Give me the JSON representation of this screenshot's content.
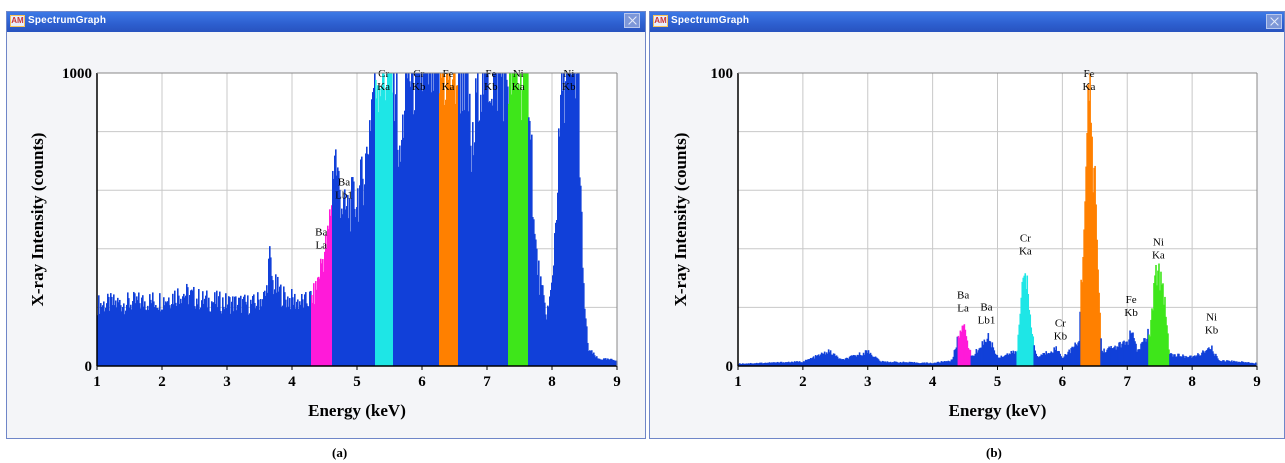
{
  "windows": [
    {
      "title": "SpectrumGraph",
      "logo": "AM",
      "close_icon": "close-icon"
    },
    {
      "title": "SpectrumGraph",
      "logo": "AM",
      "close_icon": "close-icon"
    }
  ],
  "captions": [
    "(a)",
    "(b)"
  ],
  "colors": {
    "spectrum": "#1140d9",
    "Ba La": "#ff1ad9",
    "Cr Ka": "#1ee6e6",
    "Fe Ka": "#ff8000",
    "Ni Ka": "#3ee61a",
    "grid": "#c8c8c8",
    "axis_fg": "#000000"
  },
  "chart_data": [
    {
      "type": "area",
      "title": "",
      "xlabel": "Energy (keV)",
      "ylabel": "X-ray Intensity (counts)",
      "xlim": [
        1,
        9
      ],
      "ylim": [
        0,
        1000
      ],
      "xticks": [
        "1",
        "2",
        "3",
        "4",
        "5",
        "6",
        "7",
        "8",
        "9"
      ],
      "yticks": [
        "0",
        "1000"
      ],
      "grid": true,
      "series": [
        {
          "points": [
            [
              1.0,
              210
            ],
            [
              1.5,
              215
            ],
            [
              2.0,
              225
            ],
            [
              2.3,
              250
            ],
            [
              2.6,
              225
            ],
            [
              3.0,
              215
            ],
            [
              3.4,
              210
            ],
            [
              3.6,
              240
            ],
            [
              3.65,
              370
            ],
            [
              3.7,
              280
            ],
            [
              3.9,
              230
            ],
            [
              4.2,
              215
            ],
            [
              4.35,
              245
            ],
            [
              4.45,
              350
            ],
            [
              4.55,
              430
            ],
            [
              4.6,
              550
            ],
            [
              4.65,
              750
            ],
            [
              4.7,
              640
            ],
            [
              4.8,
              520
            ],
            [
              4.95,
              560
            ],
            [
              5.05,
              600
            ],
            [
              5.15,
              720
            ],
            [
              5.22,
              900
            ],
            [
              5.27,
              1000
            ],
            [
              5.6,
              1000
            ],
            [
              5.65,
              650
            ],
            [
              5.7,
              800
            ],
            [
              5.75,
              1000
            ],
            [
              6.7,
              1000
            ],
            [
              6.75,
              700
            ],
            [
              6.8,
              750
            ],
            [
              6.85,
              1000
            ],
            [
              7.65,
              1000
            ],
            [
              7.72,
              450
            ],
            [
              7.8,
              300
            ],
            [
              7.9,
              180
            ],
            [
              7.95,
              200
            ],
            [
              8.0,
              280
            ],
            [
              8.1,
              700
            ],
            [
              8.15,
              1000
            ],
            [
              8.4,
              1000
            ],
            [
              8.47,
              300
            ],
            [
              8.55,
              60
            ],
            [
              8.7,
              25
            ],
            [
              9.0,
              20
            ]
          ]
        }
      ],
      "peaks": [
        {
          "label": "Ba\nLa",
          "x": 4.45,
          "x_range": [
            4.3,
            4.62
          ],
          "color": "#ff1ad9"
        },
        {
          "label": "Ba\nLb1",
          "x": 4.8,
          "color": "#1140d9"
        },
        {
          "label": "Cr\nKa",
          "x": 5.41,
          "x_range": [
            5.28,
            5.55
          ],
          "color": "#1ee6e6"
        },
        {
          "label": "Cr\nKb",
          "x": 5.95,
          "color": "#1140d9"
        },
        {
          "label": "Fe\nKa",
          "x": 6.4,
          "x_range": [
            6.26,
            6.56
          ],
          "color": "#ff8000"
        },
        {
          "label": "Fe\nKb",
          "x": 7.06,
          "color": "#1140d9"
        },
        {
          "label": "Ni\nKa",
          "x": 7.48,
          "x_range": [
            7.33,
            7.63
          ],
          "color": "#3ee61a"
        },
        {
          "label": "Ni\nKb",
          "x": 8.26,
          "color": "#1140d9"
        }
      ]
    },
    {
      "type": "area",
      "title": "",
      "xlabel": "Energy (keV)",
      "ylabel": "X-ray Intensity (counts)",
      "xlim": [
        1,
        9
      ],
      "ylim": [
        0,
        100
      ],
      "xticks": [
        "1",
        "2",
        "3",
        "4",
        "5",
        "6",
        "7",
        "8",
        "9"
      ],
      "yticks": [
        "0",
        "100"
      ],
      "grid": true,
      "series": [
        {
          "points": [
            [
              1.0,
              0.8
            ],
            [
              2.0,
              1.5
            ],
            [
              2.4,
              5
            ],
            [
              2.6,
              2
            ],
            [
              3.0,
              5
            ],
            [
              3.2,
              1.5
            ],
            [
              4.0,
              1
            ],
            [
              4.3,
              2
            ],
            [
              4.45,
              15
            ],
            [
              4.6,
              3
            ],
            [
              4.85,
              10
            ],
            [
              5.0,
              3
            ],
            [
              5.3,
              5
            ],
            [
              5.35,
              20
            ],
            [
              5.41,
              38
            ],
            [
              5.5,
              15
            ],
            [
              5.6,
              3
            ],
            [
              5.9,
              6
            ],
            [
              6.0,
              3
            ],
            [
              6.25,
              8
            ],
            [
              6.35,
              60
            ],
            [
              6.41,
              93
            ],
            [
              6.5,
              60
            ],
            [
              6.6,
              5
            ],
            [
              7.0,
              8
            ],
            [
              7.06,
              12
            ],
            [
              7.15,
              5
            ],
            [
              7.35,
              12
            ],
            [
              7.45,
              33
            ],
            [
              7.55,
              28
            ],
            [
              7.65,
              4
            ],
            [
              8.0,
              3
            ],
            [
              8.3,
              6
            ],
            [
              8.4,
              2
            ],
            [
              9.0,
              1
            ]
          ]
        }
      ],
      "peaks": [
        {
          "label": "Ba\nLa",
          "x": 4.47,
          "x_range": [
            4.38,
            4.58
          ],
          "color": "#ff1ad9"
        },
        {
          "label": "Ba\nLb1",
          "x": 4.83,
          "color": "#1140d9"
        },
        {
          "label": "Cr\nKa",
          "x": 5.43,
          "x_range": [
            5.3,
            5.55
          ],
          "color": "#1ee6e6"
        },
        {
          "label": "Cr\nKb",
          "x": 5.97,
          "color": "#1140d9"
        },
        {
          "label": "Fe\nKa",
          "x": 6.41,
          "x_range": [
            6.27,
            6.58
          ],
          "color": "#ff8000"
        },
        {
          "label": "Fe\nKb",
          "x": 7.06,
          "color": "#1140d9"
        },
        {
          "label": "Ni\nKa",
          "x": 7.48,
          "x_range": [
            7.33,
            7.65
          ],
          "color": "#3ee61a"
        },
        {
          "label": "Ni\nKb",
          "x": 8.3,
          "color": "#1140d9"
        }
      ]
    }
  ]
}
